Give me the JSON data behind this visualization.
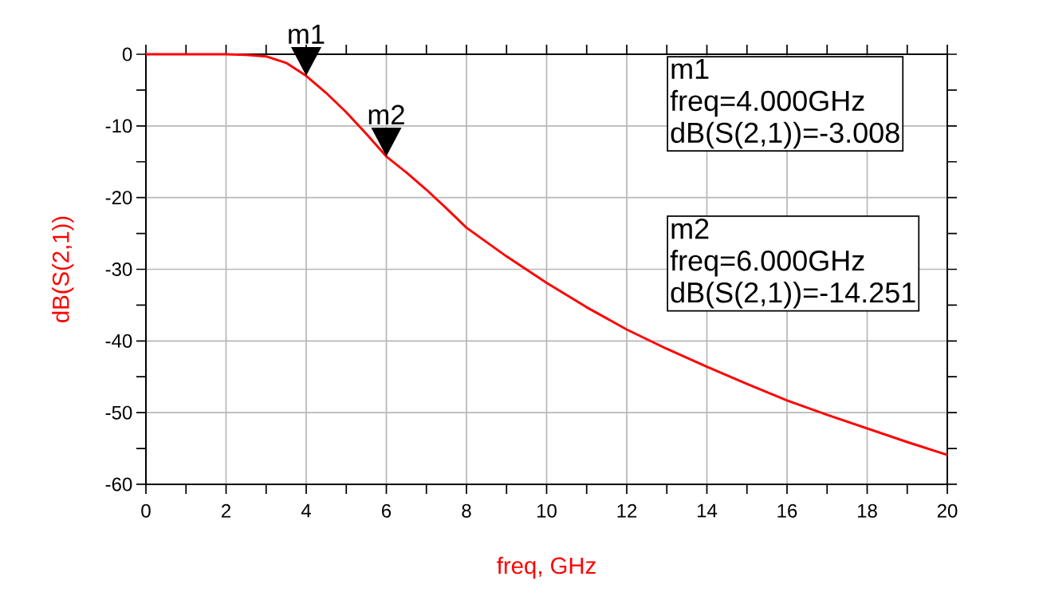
{
  "chart_data": {
    "type": "line",
    "xlabel": "freq, GHz",
    "ylabel": "dB(S(2,1))",
    "x": [
      0,
      1,
      2,
      2.5,
      3,
      3.5,
      4,
      4.5,
      5,
      5.5,
      6,
      6.5,
      7,
      7.5,
      8,
      9,
      10,
      11,
      12,
      13,
      14,
      15,
      16,
      17,
      18,
      19,
      20
    ],
    "series": [
      {
        "color": "#ff0000",
        "values": [
          0,
          0,
          0,
          -0.1,
          -0.3,
          -1.2,
          -3.008,
          -5.4,
          -8.1,
          -11.1,
          -14.251,
          -16.5,
          -18.9,
          -21.5,
          -24.2,
          -28.2,
          -31.9,
          -35.3,
          -38.4,
          -41.1,
          -43.6,
          -46.0,
          -48.3,
          -50.3,
          -52.2,
          -54.1,
          -55.9
        ]
      }
    ],
    "xlim": [
      0,
      20
    ],
    "ylim": [
      -60,
      0
    ],
    "xticks": [
      0,
      2,
      4,
      6,
      8,
      10,
      12,
      14,
      16,
      18,
      20
    ],
    "yticks": [
      -60,
      -50,
      -40,
      -30,
      -20,
      -10,
      0
    ],
    "grid": true,
    "marker": "none",
    "line_style": "solid",
    "annotations": [
      {
        "text": "m1",
        "x": 4,
        "y": -3.008
      },
      {
        "text": "m2",
        "x": 6,
        "y": -14.251
      },
      "m1",
      "freq=4.000GHz",
      "dB(S(2,1))=-3.008",
      "m2",
      "freq=6.000GHz",
      "dB(S(2,1))=-14.251"
    ]
  }
}
